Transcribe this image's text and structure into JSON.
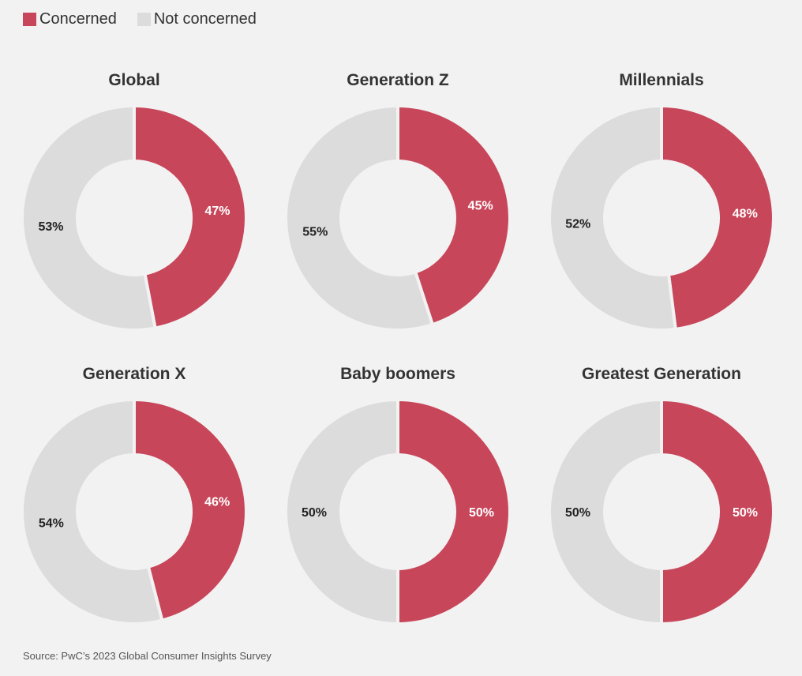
{
  "chart_data": {
    "type": "pie",
    "variant": "donut",
    "legend": {
      "position": "top-left",
      "entries": [
        "Concerned",
        "Not concerned"
      ]
    },
    "colors": {
      "Concerned": "#c8465a",
      "Not concerned": "#dcdcdc"
    },
    "charts": [
      {
        "title": "Global",
        "values": {
          "Concerned": 47,
          "Not concerned": 53
        },
        "labels": {
          "Concerned": "47%",
          "Not concerned": "53%"
        }
      },
      {
        "title": "Generation Z",
        "values": {
          "Concerned": 45,
          "Not concerned": 55
        },
        "labels": {
          "Concerned": "45%",
          "Not concerned": "55%"
        }
      },
      {
        "title": "Millennials",
        "values": {
          "Concerned": 48,
          "Not concerned": 52
        },
        "labels": {
          "Concerned": "48%",
          "Not concerned": "52%"
        }
      },
      {
        "title": "Generation X",
        "values": {
          "Concerned": 46,
          "Not concerned": 54
        },
        "labels": {
          "Concerned": "46%",
          "Not concerned": "54%"
        }
      },
      {
        "title": "Baby boomers",
        "values": {
          "Concerned": 50,
          "Not concerned": 50
        },
        "labels": {
          "Concerned": "50%",
          "Not concerned": "50%"
        }
      },
      {
        "title": "Greatest Generation",
        "values": {
          "Concerned": 50,
          "Not concerned": 50
        },
        "labels": {
          "Concerned": "50%",
          "Not concerned": "50%"
        }
      }
    ]
  },
  "source": "Source: PwC’s 2023 Global Consumer Insights Survey"
}
